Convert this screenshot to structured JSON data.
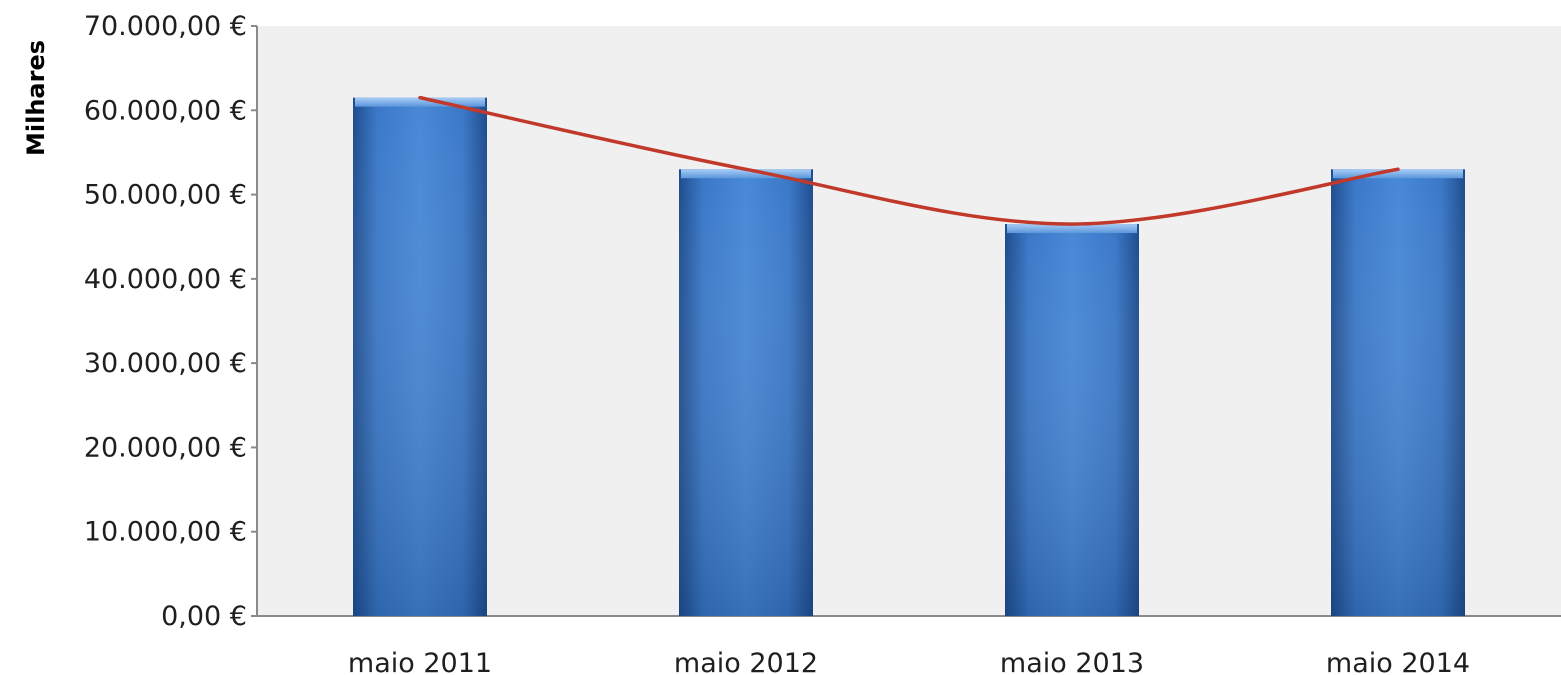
{
  "chart_data": {
    "type": "bar",
    "categories": [
      "maio 2011",
      "maio 2012",
      "maio 2013",
      "maio 2014"
    ],
    "values": [
      61500,
      53000,
      46500,
      53000
    ],
    "ylabel": "Milhares",
    "ylim": [
      0,
      70000
    ],
    "y_ticks": [
      0,
      10000,
      20000,
      30000,
      40000,
      50000,
      60000,
      70000
    ],
    "y_tick_labels": [
      "0,00 €",
      "10.000,00 €",
      "20.000,00 €",
      "30.000,00 €",
      "40.000,00 €",
      "50.000,00 €",
      "60.000,00 €",
      "70.000,00 €"
    ],
    "trendline": {
      "type": "smoothed-line",
      "follows": "values",
      "color": "#c0392b"
    },
    "grid": false,
    "legend": "none",
    "colors": {
      "bar": "#3a75c4",
      "bar_dark": "#2a5596",
      "plot_background": "#f0f0f0"
    }
  }
}
